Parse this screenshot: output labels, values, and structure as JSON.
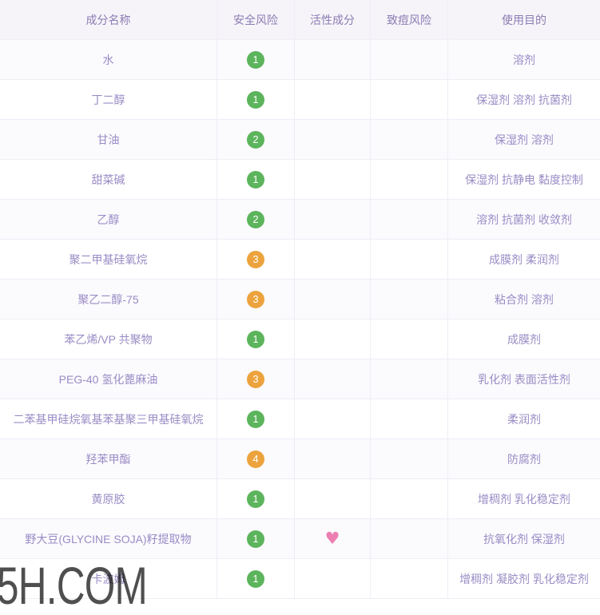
{
  "table": {
    "columns": [
      {
        "key": "name",
        "label": "成分名称"
      },
      {
        "key": "safety",
        "label": "安全风险"
      },
      {
        "key": "active",
        "label": "活性成分"
      },
      {
        "key": "acne",
        "label": "致痘风险"
      },
      {
        "key": "purpose",
        "label": "使用目的"
      }
    ],
    "rows": [
      {
        "name": "水",
        "safety": 1,
        "active": "",
        "acne": "",
        "purpose": "溶剂"
      },
      {
        "name": "丁二醇",
        "safety": 1,
        "active": "",
        "acne": "",
        "purpose": "保湿剂 溶剂 抗菌剂"
      },
      {
        "name": "甘油",
        "safety": 2,
        "active": "",
        "acne": "",
        "purpose": "保湿剂 溶剂"
      },
      {
        "name": "甜菜碱",
        "safety": 1,
        "active": "",
        "acne": "",
        "purpose": "保湿剂 抗静电 黏度控制"
      },
      {
        "name": "乙醇",
        "safety": 2,
        "active": "",
        "acne": "",
        "purpose": "溶剂 抗菌剂 收敛剂"
      },
      {
        "name": "聚二甲基硅氧烷",
        "safety": 3,
        "active": "",
        "acne": "",
        "purpose": "成膜剂 柔润剂"
      },
      {
        "name": "聚乙二醇-75",
        "safety": 3,
        "active": "",
        "acne": "",
        "purpose": "粘合剂 溶剂"
      },
      {
        "name": "苯乙烯/VP 共聚物",
        "safety": 1,
        "active": "",
        "acne": "",
        "purpose": "成膜剂"
      },
      {
        "name": "PEG-40 氢化蓖麻油",
        "safety": 3,
        "active": "",
        "acne": "",
        "purpose": "乳化剂 表面活性剂"
      },
      {
        "name": "二苯基甲硅烷氧基苯基聚三甲基硅氧烷",
        "safety": 1,
        "active": "",
        "acne": "",
        "purpose": "柔润剂"
      },
      {
        "name": "羟苯甲酯",
        "safety": 4,
        "active": "",
        "acne": "",
        "purpose": "防腐剂"
      },
      {
        "name": "黄原胶",
        "safety": 1,
        "active": "",
        "acne": "",
        "purpose": "增稠剂 乳化稳定剂"
      },
      {
        "name": "野大豆(GLYCINE SOJA)籽提取物",
        "safety": 1,
        "active": "heart",
        "acne": "",
        "purpose": "抗氧化剂 保湿剂"
      },
      {
        "name": "卡波姆",
        "safety": 1,
        "active": "",
        "acne": "",
        "purpose": "增稠剂 凝胶剂 乳化稳定剂"
      }
    ]
  },
  "icons": {
    "active_heart": "♥"
  },
  "watermark": {
    "text": "5H.COM"
  },
  "theme": {
    "header_bg": "#f6f4f9",
    "stripe_bg": "#fbfafd",
    "border": "#f0edf6",
    "header_text": "#8b7cb3",
    "cell_text": "#9a8cc5",
    "green": "#5cb45c",
    "orange": "#eca33d",
    "heart": "#ec7fb2",
    "watermark": "#4f4f4f"
  }
}
